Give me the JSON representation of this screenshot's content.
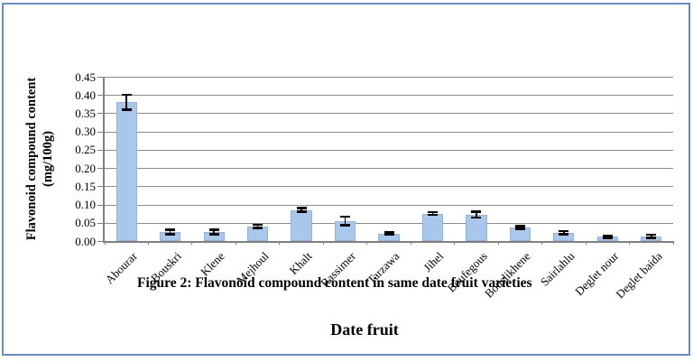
{
  "figure": {
    "caption": "Figure 2: Flavonoid compound content in same date fruit varieties",
    "border_color": "#6b8ebf"
  },
  "chart_data": {
    "type": "bar",
    "title": "",
    "xlabel": "Date fruit",
    "ylabel": "Flavonoid compound content (mg/100g)",
    "ylabel_lines": [
      "Flavonoid compound content",
      "(mg/100g)"
    ],
    "categories": [
      "Abourar",
      "Bouskri",
      "Klene",
      "Mejhoul",
      "Khalt",
      "Rassimer",
      "Tarzawa",
      "Jihel",
      "Boufegous",
      "Bouslikhene",
      "Sairlahlu",
      "Deglet nour",
      "Deglet baida"
    ],
    "values": [
      0.38,
      0.025,
      0.025,
      0.04,
      0.085,
      0.055,
      0.02,
      0.075,
      0.072,
      0.037,
      0.023,
      0.012,
      0.013
    ],
    "errors": [
      0.02,
      0.006,
      0.006,
      0.004,
      0.005,
      0.012,
      0.003,
      0.004,
      0.008,
      0.004,
      0.004,
      0.003,
      0.004
    ],
    "ylim": [
      0,
      0.45
    ],
    "ytick_step": 0.05,
    "ytick_decimals": 2,
    "grid": true,
    "legend_position": "none",
    "bar_color": "#a9c7ea",
    "bar_border_color": "#95b3d7",
    "error_color": "#000000",
    "axis_color": "#808080"
  }
}
